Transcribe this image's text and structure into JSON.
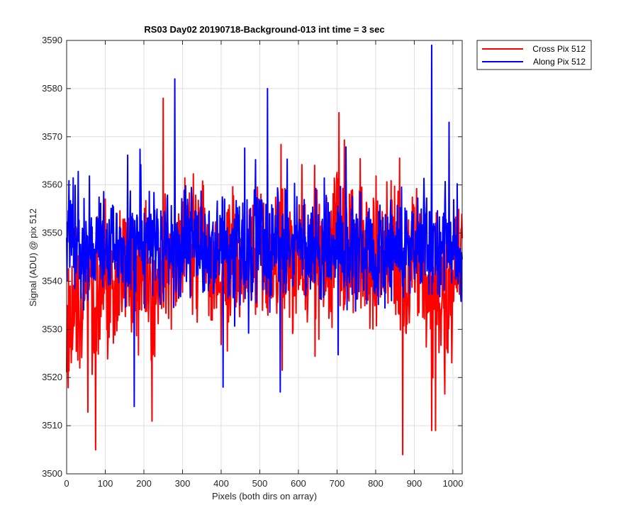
{
  "chart_data": {
    "type": "line",
    "title": "RS03 Day02 20190718-Background-013 int time = 3 sec",
    "xlabel": "Pixels (both dirs on array)",
    "ylabel": "Signal (ADU) @ pix 512",
    "xlim": [
      0,
      1024
    ],
    "ylim": [
      3500,
      3590
    ],
    "xticks": [
      0,
      100,
      200,
      300,
      400,
      500,
      600,
      700,
      800,
      900,
      1000
    ],
    "yticks": [
      3500,
      3510,
      3520,
      3530,
      3540,
      3550,
      3560,
      3570,
      3580,
      3590
    ],
    "grid": true,
    "legend_position": "outside top-right",
    "x": [
      0,
      25,
      50,
      75,
      100,
      125,
      150,
      175,
      200,
      225,
      250,
      275,
      300,
      325,
      350,
      375,
      400,
      425,
      450,
      475,
      500,
      525,
      550,
      575,
      600,
      625,
      650,
      675,
      700,
      725,
      750,
      775,
      800,
      825,
      850,
      875,
      900,
      925,
      950,
      975,
      1000,
      1024
    ],
    "series": [
      {
        "name": "Cross Pix 512",
        "color": "#ff0000",
        "values": [
          3527,
          3535,
          3540,
          3538,
          3541,
          3539,
          3543,
          3541,
          3542,
          3538,
          3545,
          3544,
          3546,
          3547,
          3549,
          3544,
          3542,
          3546,
          3543,
          3544,
          3545,
          3540,
          3546,
          3543,
          3546,
          3543,
          3547,
          3545,
          3548,
          3543,
          3544,
          3546,
          3545,
          3544,
          3547,
          3538,
          3546,
          3541,
          3540,
          3538,
          3539,
          3548
        ]
      },
      {
        "name": "Along Pix 512",
        "color": "#0000ff",
        "values": [
          3550,
          3548,
          3546,
          3545,
          3549,
          3547,
          3546,
          3548,
          3549,
          3547,
          3546,
          3548,
          3547,
          3549,
          3546,
          3545,
          3547,
          3548,
          3548,
          3546,
          3549,
          3546,
          3548,
          3547,
          3548,
          3546,
          3548,
          3547,
          3549,
          3546,
          3547,
          3546,
          3547,
          3548,
          3547,
          3546,
          3548,
          3549,
          3547,
          3546,
          3548,
          3545
        ]
      }
    ],
    "extremes": {
      "cross": [
        [
          75,
          3505
        ],
        [
          870,
          3504
        ],
        [
          705,
          3575
        ],
        [
          250,
          3578
        ],
        [
          945,
          3509
        ],
        [
          955,
          3509
        ]
      ],
      "along": [
        [
          280,
          3582
        ],
        [
          520,
          3580
        ],
        [
          945,
          3589
        ],
        [
          990,
          3573
        ],
        [
          175,
          3514
        ],
        [
          553,
          3517
        ],
        [
          405,
          3518
        ]
      ]
    }
  }
}
